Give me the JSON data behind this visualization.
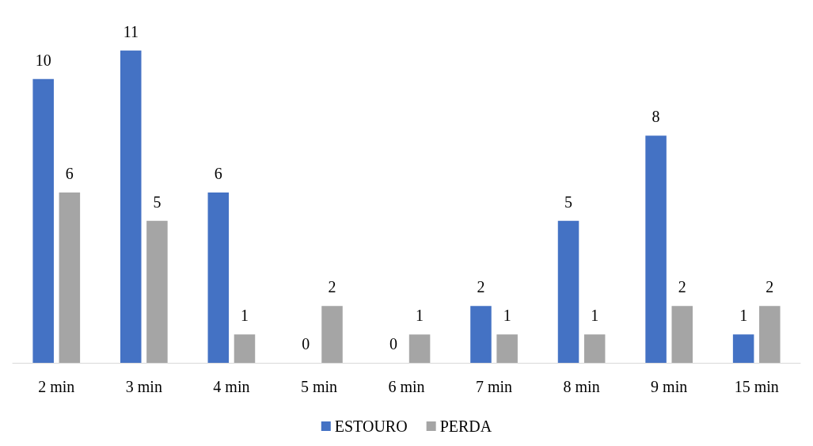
{
  "chart_data": {
    "type": "bar",
    "categories": [
      "2 min",
      "3 min",
      "4 min",
      "5 min",
      "6 min",
      "7 min",
      "8 min",
      "9 min",
      "15 min"
    ],
    "series": [
      {
        "name": "ESTOURO",
        "color": "#4472c4",
        "values": [
          10,
          11,
          6,
          0,
          0,
          2,
          5,
          8,
          1
        ]
      },
      {
        "name": "PERDA",
        "color": "#a5a5a5",
        "values": [
          6,
          5,
          1,
          2,
          1,
          1,
          1,
          2,
          2
        ]
      }
    ],
    "data_labels": true,
    "legend": "bottom"
  }
}
